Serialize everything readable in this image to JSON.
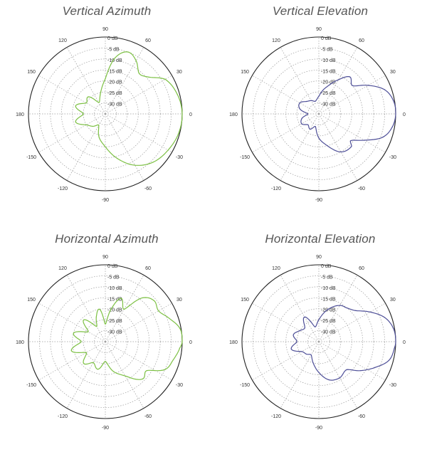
{
  "charts": [
    {
      "title": "Vertical Azimuth",
      "color": "#7cc043",
      "chart_data": {
        "type": "polar",
        "title": "Vertical Azimuth",
        "r_ticks": [
          "0 dB",
          "-5 dB",
          "-10 dB",
          "-15 dB",
          "-20 dB",
          "-25 dB",
          "-30 dB"
        ],
        "angle_labels": [
          "90",
          "60",
          "30",
          "0",
          "-30",
          "-60",
          "-90",
          "-120",
          "-150",
          "180",
          "150",
          "120"
        ],
        "r_range_db": [
          -35,
          0
        ],
        "angles_deg": [
          0,
          15,
          30,
          40,
          50,
          60,
          70,
          80,
          90,
          105,
          120,
          135,
          150,
          165,
          180,
          195,
          210,
          225,
          240,
          255,
          270,
          285,
          300,
          315,
          330,
          345
        ],
        "gain_db": [
          0,
          -1,
          -3.5,
          -9,
          -11,
          -7,
          -5,
          -9,
          -19,
          -26,
          -29,
          -24,
          -25,
          -21,
          -25,
          -21,
          -25,
          -27,
          -29,
          -24,
          -20,
          -14,
          -8,
          -4,
          -2,
          -0.5
        ]
      }
    },
    {
      "title": "Vertical Elevation",
      "color": "#4d4e97",
      "chart_data": {
        "type": "polar",
        "title": "Vertical Elevation",
        "r_ticks": [
          "0 dB",
          "-5 dB",
          "-10 dB",
          "-15 dB",
          "-20 dB",
          "-25 dB",
          "-30 dB"
        ],
        "angle_labels": [
          "90",
          "60",
          "30",
          "0",
          "-30",
          "-60",
          "-90",
          "-120",
          "-150",
          "180",
          "150",
          "120"
        ],
        "r_range_db": [
          -35,
          0
        ],
        "angles_deg": [
          0,
          10,
          20,
          30,
          40,
          50,
          60,
          70,
          80,
          90,
          105,
          120,
          135,
          150,
          165,
          180,
          195,
          210,
          225,
          240,
          255,
          270,
          285,
          300,
          315,
          320,
          330,
          340,
          350
        ],
        "gain_db": [
          0,
          -0.5,
          -3,
          -9,
          -15,
          -13,
          -17,
          -21,
          -24,
          -27,
          -29,
          -28,
          -27,
          -25,
          -26,
          -30,
          -27,
          -26,
          -28,
          -27,
          -29,
          -24,
          -20,
          -15,
          -14,
          -16,
          -11,
          -4,
          -1
        ]
      }
    },
    {
      "title": "Horizontal Azimuth",
      "color": "#7cc043",
      "chart_data": {
        "type": "polar",
        "title": "Horizontal Azimuth",
        "r_ticks": [
          "0 dB",
          "-5 dB",
          "-10 dB",
          "-15 dB",
          "-20 dB",
          "-25 dB",
          "-30 dB"
        ],
        "angle_labels": [
          "90",
          "60",
          "30",
          "0",
          "-30",
          "-60",
          "-90",
          "-120",
          "-150",
          "180",
          "150",
          "120"
        ],
        "r_range_db": [
          -35,
          0
        ],
        "angles_deg": [
          0,
          10,
          20,
          30,
          40,
          50,
          60,
          70,
          80,
          90,
          100,
          110,
          120,
          135,
          150,
          165,
          180,
          195,
          210,
          225,
          240,
          255,
          270,
          285,
          300,
          315,
          325,
          335,
          345,
          355
        ],
        "gain_db": [
          0,
          -0.5,
          -4,
          -7,
          -6,
          -9,
          -18,
          -14,
          -20,
          -27,
          -20,
          -23,
          -27,
          -21,
          -26,
          -20,
          -24,
          -19,
          -25,
          -21,
          -24,
          -22,
          -26,
          -21,
          -17,
          -11,
          -12,
          -5,
          -3,
          -1
        ]
      }
    },
    {
      "title": "Horizontal Elevation",
      "color": "#4d4e97",
      "chart_data": {
        "type": "polar",
        "title": "Horizontal Elevation",
        "r_ticks": [
          "0 dB",
          "-5 dB",
          "-10 dB",
          "-15 dB",
          "-20 dB",
          "-25 dB",
          "-30 dB"
        ],
        "angle_labels": [
          "90",
          "60",
          "30",
          "0",
          "-30",
          "-60",
          "-90",
          "-120",
          "-150",
          "180",
          "150",
          "120"
        ],
        "r_range_db": [
          -35,
          0
        ],
        "angles_deg": [
          0,
          10,
          20,
          30,
          40,
          50,
          60,
          75,
          90,
          105,
          120,
          135,
          150,
          165,
          180,
          195,
          210,
          225,
          240,
          255,
          270,
          285,
          300,
          315,
          325,
          335,
          345,
          355
        ],
        "gain_db": [
          0,
          -0.5,
          -3,
          -8,
          -13,
          -15,
          -16,
          -20,
          -25,
          -28,
          -22,
          -26,
          -25,
          -23,
          -25,
          -22,
          -26,
          -27,
          -28,
          -25,
          -21,
          -17,
          -16,
          -17,
          -12,
          -7,
          -2,
          -0.5
        ]
      }
    }
  ]
}
